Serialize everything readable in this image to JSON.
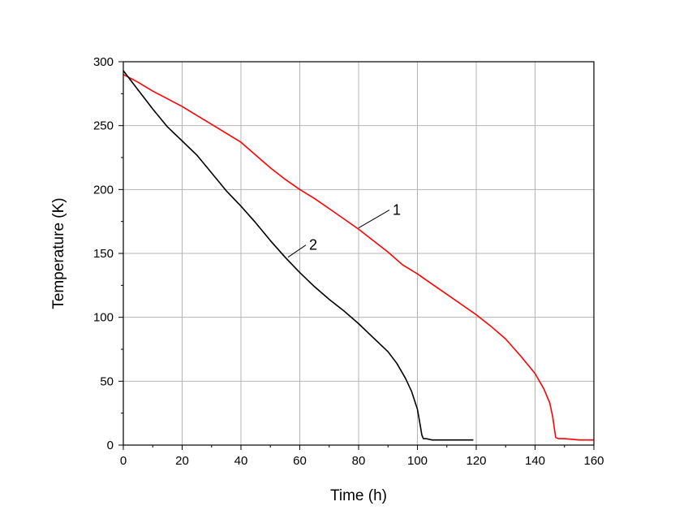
{
  "chart_data": {
    "type": "line",
    "xlabel": "Time (h)",
    "ylabel": "Temperature (K)",
    "xlim": [
      0,
      160
    ],
    "ylim": [
      0,
      300
    ],
    "xticks": [
      0,
      20,
      40,
      60,
      80,
      100,
      120,
      140,
      160
    ],
    "yticks": [
      0,
      50,
      100,
      150,
      200,
      250,
      300
    ],
    "grid": true,
    "series": [
      {
        "name": "1",
        "color": "#ff0000",
        "x": [
          0,
          5,
          10,
          15,
          20,
          25,
          30,
          35,
          40,
          45,
          50,
          55,
          60,
          65,
          70,
          75,
          80,
          85,
          90,
          95,
          100,
          105,
          110,
          115,
          120,
          125,
          130,
          135,
          140,
          143,
          145,
          146,
          147,
          148,
          150,
          155,
          160
        ],
        "y": [
          290,
          284,
          277,
          271,
          265,
          258,
          251,
          244,
          237,
          227,
          217,
          208,
          200,
          193,
          185,
          177,
          169,
          160,
          151,
          141,
          134,
          126,
          118,
          110,
          102,
          93,
          83,
          70,
          56,
          44,
          33,
          22,
          6,
          5,
          5,
          4,
          4
        ]
      },
      {
        "name": "2",
        "color": "#000000",
        "x": [
          0,
          5,
          10,
          15,
          20,
          25,
          30,
          35,
          40,
          45,
          50,
          55,
          60,
          65,
          70,
          75,
          80,
          85,
          90,
          93,
          96,
          98,
          100,
          101,
          101.5,
          102,
          103,
          105,
          110,
          115,
          119
        ],
        "y": [
          293,
          278,
          263,
          249,
          238,
          227,
          213,
          199,
          187,
          174,
          160,
          147,
          135,
          124,
          114,
          105,
          95,
          84,
          73,
          64,
          52,
          42,
          28,
          15,
          8,
          5,
          5,
          4,
          4,
          4,
          4
        ]
      }
    ],
    "annotations": [
      {
        "text": "1",
        "series": 0
      },
      {
        "text": "2",
        "series": 1
      }
    ]
  }
}
